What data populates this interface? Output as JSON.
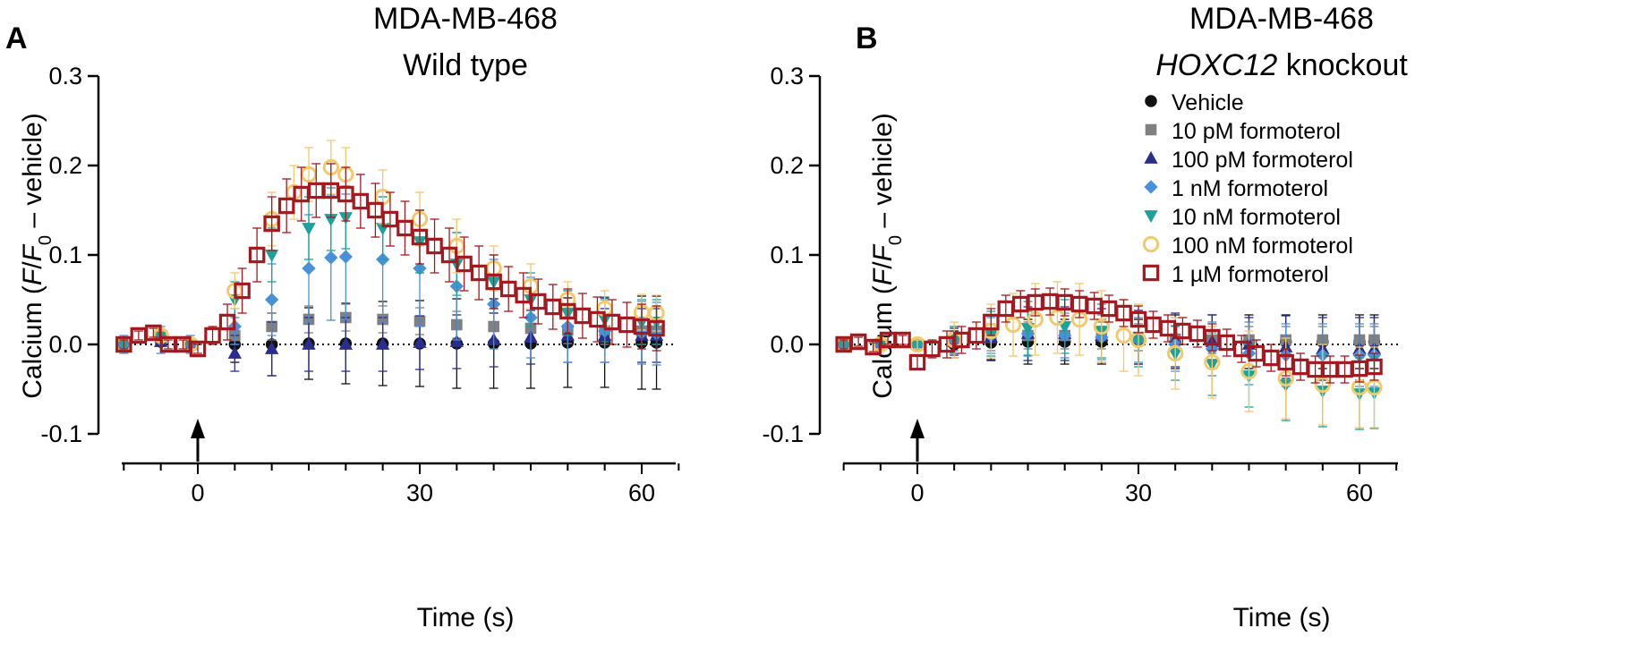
{
  "chart_data": [
    {
      "panel_label": "A",
      "type": "scatter",
      "title_line1": "MDA-MB-468",
      "title_line2": "Wild type",
      "title_line2_italic": "",
      "title_line2_rest": "",
      "ylabel_pre": "Calcium (",
      "ylabel_F": "F",
      "ylabel_slash": "/",
      "ylabel_F0": "F",
      "ylabel_sub": "0",
      "ylabel_post": " – vehicle)",
      "xlabel": "Time (s)",
      "xlim": [
        -10,
        65
      ],
      "ylim": [
        -0.1,
        0.3
      ],
      "yticks": [
        "-0.1",
        "0.0",
        "0.1",
        "0.2",
        "0.3"
      ],
      "xticks": [
        "0",
        "30",
        "60"
      ],
      "stimulus_marker_x": 0,
      "reference_line_y": 0,
      "series": [
        {
          "name": "Vehicle",
          "marker": "circle",
          "color": "#111111",
          "x": [
            -10,
            -5,
            -1,
            5,
            10,
            15,
            20,
            25,
            30,
            35,
            40,
            45,
            50,
            55,
            60,
            62
          ],
          "y": [
            0.0,
            0.003,
            0.0,
            0.0,
            0.0,
            0.001,
            0.001,
            0.001,
            0.001,
            0.001,
            0.001,
            0.001,
            0.002,
            0.002,
            0.002,
            0.002
          ],
          "err": [
            0.005,
            0.005,
            0.005,
            0.02,
            0.035,
            0.04,
            0.045,
            0.047,
            0.048,
            0.05,
            0.05,
            0.05,
            0.05,
            0.05,
            0.052,
            0.052
          ]
        },
        {
          "name": "10 pM formoterol",
          "marker": "square-filled",
          "color": "#808080",
          "x": [
            -10,
            -5,
            -1,
            5,
            10,
            15,
            20,
            25,
            30,
            35,
            40,
            45,
            50,
            55,
            60,
            62
          ],
          "y": [
            0.0,
            0.005,
            0.0,
            0.01,
            0.02,
            0.028,
            0.03,
            0.028,
            0.026,
            0.022,
            0.02,
            0.018,
            0.016,
            0.015,
            0.015,
            0.015
          ],
          "err": [
            0.005,
            0.005,
            0.005,
            0.01,
            0.015,
            0.015,
            0.015,
            0.015,
            0.015,
            0.015,
            0.015,
            0.015,
            0.015,
            0.015,
            0.015,
            0.015
          ]
        },
        {
          "name": "100 pM formoterol",
          "marker": "triangle-up",
          "color": "#2b2d8c",
          "x": [
            -10,
            -5,
            -1,
            5,
            10,
            15,
            20,
            25,
            30,
            35,
            40,
            45,
            50,
            55,
            60,
            62
          ],
          "y": [
            0.0,
            0.003,
            0.0,
            -0.01,
            -0.005,
            0.0,
            0.0,
            0.0,
            0.002,
            0.003,
            0.005,
            0.008,
            0.01,
            0.01,
            0.01,
            0.01
          ],
          "err": [
            0.005,
            0.005,
            0.005,
            0.02,
            0.03,
            0.03,
            0.03,
            0.03,
            0.03,
            0.03,
            0.03,
            0.03,
            0.03,
            0.03,
            0.03,
            0.03
          ]
        },
        {
          "name": "1 nM formoterol",
          "marker": "diamond",
          "color": "#4a90d9",
          "x": [
            -10,
            -5,
            -1,
            5,
            10,
            15,
            18,
            20,
            25,
            30,
            35,
            40,
            45,
            50,
            55,
            60,
            62
          ],
          "y": [
            0.0,
            0.005,
            0.0,
            0.02,
            0.05,
            0.085,
            0.097,
            0.098,
            0.095,
            0.085,
            0.065,
            0.045,
            0.03,
            0.02,
            0.015,
            0.013,
            0.012
          ],
          "err": [
            0.01,
            0.015,
            0.01,
            0.02,
            0.04,
            0.06,
            0.07,
            0.07,
            0.07,
            0.065,
            0.06,
            0.05,
            0.045,
            0.04,
            0.035,
            0.035,
            0.035
          ]
        },
        {
          "name": "10 nM formoterol",
          "marker": "triangle-down",
          "color": "#1aa39a",
          "x": [
            -10,
            -5,
            -1,
            5,
            10,
            15,
            18,
            20,
            25,
            30,
            35,
            40,
            45,
            50,
            55,
            60,
            62
          ],
          "y": [
            0.0,
            0.01,
            0.0,
            0.05,
            0.1,
            0.13,
            0.14,
            0.142,
            0.13,
            0.115,
            0.09,
            0.07,
            0.05,
            0.035,
            0.028,
            0.025,
            0.025
          ],
          "err": [
            0.005,
            0.005,
            0.005,
            0.02,
            0.03,
            0.035,
            0.035,
            0.035,
            0.035,
            0.035,
            0.035,
            0.03,
            0.03,
            0.025,
            0.025,
            0.025,
            0.025
          ]
        },
        {
          "name": "100 nM formoterol",
          "marker": "circle-open",
          "color": "#f2c96b",
          "x": [
            -10,
            -5,
            -1,
            5,
            10,
            13,
            15,
            18,
            20,
            25,
            30,
            35,
            40,
            45,
            50,
            55,
            60,
            62
          ],
          "y": [
            0.0,
            0.01,
            0.0,
            0.06,
            0.14,
            0.17,
            0.19,
            0.198,
            0.19,
            0.165,
            0.14,
            0.11,
            0.085,
            0.065,
            0.05,
            0.04,
            0.036,
            0.035
          ],
          "err": [
            0.005,
            0.005,
            0.005,
            0.02,
            0.03,
            0.03,
            0.03,
            0.03,
            0.03,
            0.03,
            0.03,
            0.03,
            0.025,
            0.025,
            0.02,
            0.02,
            0.02,
            0.02
          ]
        },
        {
          "name": "1 µM formoterol",
          "marker": "square-open",
          "color": "#a3191f",
          "x": [
            -10,
            -8,
            -6,
            -4,
            -2,
            0,
            2,
            4,
            6,
            8,
            10,
            12,
            14,
            16,
            18,
            20,
            22,
            24,
            26,
            28,
            30,
            32,
            34,
            36,
            38,
            40,
            42,
            44,
            46,
            48,
            50,
            52,
            54,
            56,
            58,
            60,
            62
          ],
          "y": [
            0.0,
            0.01,
            0.013,
            0.0,
            0.0,
            -0.005,
            0.01,
            0.025,
            0.06,
            0.1,
            0.135,
            0.155,
            0.168,
            0.172,
            0.172,
            0.168,
            0.16,
            0.15,
            0.14,
            0.13,
            0.12,
            0.11,
            0.1,
            0.09,
            0.08,
            0.07,
            0.062,
            0.055,
            0.048,
            0.042,
            0.037,
            0.032,
            0.028,
            0.025,
            0.022,
            0.02,
            0.018
          ],
          "err": [
            0.005,
            0.005,
            0.005,
            0.005,
            0.005,
            0.005,
            0.01,
            0.02,
            0.025,
            0.03,
            0.03,
            0.03,
            0.03,
            0.03,
            0.03,
            0.03,
            0.03,
            0.03,
            0.03,
            0.03,
            0.03,
            0.03,
            0.03,
            0.03,
            0.03,
            0.03,
            0.025,
            0.025,
            0.025,
            0.025,
            0.025,
            0.025,
            0.025,
            0.025,
            0.025,
            0.025,
            0.025
          ]
        }
      ]
    },
    {
      "panel_label": "B",
      "type": "scatter",
      "title_line1": "MDA-MB-468",
      "title_line2": "",
      "title_line2_italic": "HOXC12",
      "title_line2_rest": " knockout",
      "ylabel_pre": "Calcium (",
      "ylabel_F": "F",
      "ylabel_slash": "/",
      "ylabel_F0": "F",
      "ylabel_sub": "0",
      "ylabel_post": " – vehicle)",
      "xlabel": "Time (s)",
      "xlim": [
        -10,
        65
      ],
      "ylim": [
        -0.1,
        0.3
      ],
      "yticks": [
        "-0.1",
        "0.0",
        "0.1",
        "0.2",
        "0.3"
      ],
      "xticks": [
        "0",
        "30",
        "60"
      ],
      "stimulus_marker_x": 0,
      "reference_line_y": 0,
      "legend_position": "top-right",
      "series": [
        {
          "name": "Vehicle",
          "marker": "circle",
          "color": "#111111",
          "x": [
            -10,
            -5,
            0,
            5,
            10,
            15,
            20,
            25,
            30,
            35,
            40,
            45,
            50,
            55,
            60,
            62
          ],
          "y": [
            0.0,
            0.0,
            0.0,
            0.0,
            0.002,
            0.003,
            0.003,
            0.003,
            0.003,
            0.003,
            0.003,
            0.003,
            0.003,
            0.003,
            0.003,
            0.003
          ],
          "err": [
            0.005,
            0.005,
            0.005,
            0.015,
            0.02,
            0.025,
            0.025,
            0.025,
            0.025,
            0.03,
            0.03,
            0.03,
            0.03,
            0.03,
            0.03,
            0.03
          ]
        },
        {
          "name": "10 pM formoterol",
          "marker": "square-filled",
          "color": "#808080",
          "x": [
            -10,
            -5,
            0,
            5,
            10,
            15,
            20,
            25,
            30,
            35,
            40,
            45,
            50,
            55,
            60,
            62
          ],
          "y": [
            0.0,
            0.0,
            0.0,
            0.003,
            0.008,
            0.01,
            0.01,
            0.01,
            0.008,
            0.006,
            0.005,
            0.005,
            0.005,
            0.005,
            0.005,
            0.005
          ],
          "err": [
            0.005,
            0.005,
            0.005,
            0.01,
            0.015,
            0.015,
            0.015,
            0.015,
            0.015,
            0.015,
            0.015,
            0.015,
            0.015,
            0.015,
            0.015,
            0.015
          ]
        },
        {
          "name": "100 pM formoterol",
          "marker": "triangle-up",
          "color": "#2b2d8c",
          "x": [
            -10,
            -5,
            0,
            5,
            10,
            15,
            20,
            25,
            30,
            35,
            40,
            45,
            50,
            55,
            60,
            62
          ],
          "y": [
            0.0,
            0.0,
            0.0,
            0.003,
            0.008,
            0.012,
            0.012,
            0.01,
            0.008,
            0.005,
            0.003,
            0.0,
            -0.003,
            -0.005,
            -0.005,
            -0.005
          ],
          "err": [
            0.005,
            0.005,
            0.005,
            0.015,
            0.025,
            0.03,
            0.03,
            0.03,
            0.03,
            0.03,
            0.03,
            0.03,
            0.035,
            0.035,
            0.035,
            0.035
          ]
        },
        {
          "name": "1 nM formoterol",
          "marker": "diamond",
          "color": "#4a90d9",
          "x": [
            -10,
            -5,
            0,
            5,
            10,
            15,
            20,
            25,
            30,
            35,
            40,
            45,
            50,
            55,
            60,
            62
          ],
          "y": [
            0.0,
            0.0,
            0.0,
            0.005,
            0.01,
            0.012,
            0.01,
            0.008,
            0.005,
            0.0,
            -0.005,
            -0.01,
            -0.012,
            -0.012,
            -0.012,
            -0.012
          ],
          "err": [
            0.005,
            0.005,
            0.005,
            0.015,
            0.02,
            0.025,
            0.025,
            0.025,
            0.025,
            0.03,
            0.03,
            0.035,
            0.035,
            0.035,
            0.035,
            0.035
          ]
        },
        {
          "name": "10 nM formoterol",
          "marker": "triangle-down",
          "color": "#1aa39a",
          "x": [
            -10,
            -5,
            0,
            5,
            10,
            15,
            20,
            25,
            30,
            35,
            40,
            45,
            50,
            55,
            60,
            62
          ],
          "y": [
            0.0,
            0.0,
            0.0,
            0.005,
            0.012,
            0.018,
            0.02,
            0.015,
            0.005,
            -0.01,
            -0.022,
            -0.035,
            -0.045,
            -0.052,
            -0.055,
            -0.054
          ],
          "err": [
            0.005,
            0.005,
            0.005,
            0.015,
            0.025,
            0.03,
            0.03,
            0.03,
            0.03,
            0.03,
            0.035,
            0.035,
            0.04,
            0.04,
            0.04,
            0.04
          ]
        },
        {
          "name": "100 nM formoterol",
          "marker": "circle-open",
          "color": "#f2c96b",
          "x": [
            -10,
            -5,
            0,
            5,
            10,
            13,
            16,
            19,
            22,
            25,
            28,
            30,
            35,
            40,
            45,
            50,
            55,
            60,
            62
          ],
          "y": [
            0.0,
            0.0,
            0.0,
            0.005,
            0.015,
            0.022,
            0.028,
            0.03,
            0.028,
            0.02,
            0.01,
            0.005,
            -0.01,
            -0.02,
            -0.03,
            -0.038,
            -0.045,
            -0.048,
            -0.048
          ],
          "err": [
            0.005,
            0.005,
            0.005,
            0.02,
            0.03,
            0.035,
            0.04,
            0.04,
            0.04,
            0.04,
            0.04,
            0.04,
            0.04,
            0.04,
            0.045,
            0.045,
            0.045,
            0.045,
            0.045
          ]
        },
        {
          "name": "1 µM formoterol",
          "marker": "square-open",
          "color": "#a3191f",
          "x": [
            -10,
            -8,
            -6,
            -4,
            -2,
            0,
            2,
            4,
            6,
            8,
            10,
            12,
            14,
            16,
            18,
            20,
            22,
            24,
            26,
            28,
            30,
            32,
            34,
            36,
            38,
            40,
            42,
            44,
            46,
            48,
            50,
            52,
            54,
            56,
            58,
            60,
            62
          ],
          "y": [
            0.0,
            0.003,
            -0.003,
            0.005,
            0.005,
            -0.02,
            -0.005,
            0.0,
            0.005,
            0.01,
            0.025,
            0.04,
            0.045,
            0.047,
            0.048,
            0.047,
            0.045,
            0.043,
            0.04,
            0.035,
            0.028,
            0.022,
            0.018,
            0.015,
            0.012,
            0.008,
            0.002,
            -0.005,
            -0.01,
            -0.015,
            -0.02,
            -0.025,
            -0.028,
            -0.028,
            -0.028,
            -0.027,
            -0.025
          ],
          "err": [
            0.005,
            0.005,
            0.005,
            0.005,
            0.005,
            0.008,
            0.01,
            0.015,
            0.015,
            0.015,
            0.015,
            0.015,
            0.015,
            0.015,
            0.015,
            0.015,
            0.015,
            0.015,
            0.015,
            0.015,
            0.015,
            0.015,
            0.015,
            0.015,
            0.015,
            0.015,
            0.015,
            0.015,
            0.015,
            0.015,
            0.015,
            0.015,
            0.015,
            0.015,
            0.015,
            0.015,
            0.015
          ]
        }
      ]
    }
  ]
}
